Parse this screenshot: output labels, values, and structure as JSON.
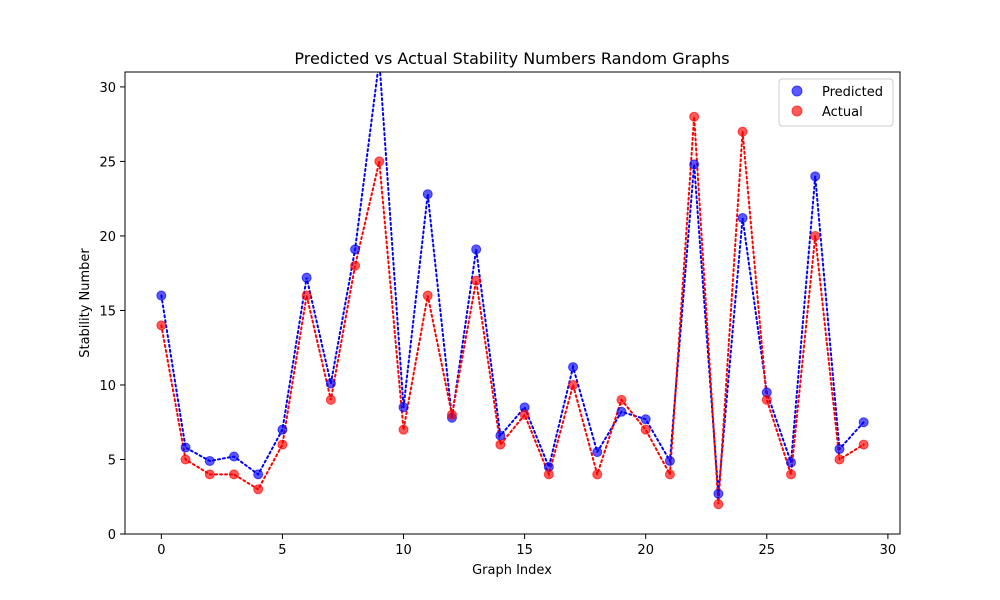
{
  "chart_data": {
    "type": "line",
    "title": "Predicted vs Actual Stability Numbers Random Graphs",
    "xlabel": "Graph Index",
    "ylabel": "Stability Number",
    "xlim": [
      -1.5,
      30.5
    ],
    "ylim": [
      0,
      31
    ],
    "xticks": [
      0,
      5,
      10,
      15,
      20,
      25,
      30
    ],
    "yticks": [
      0,
      5,
      10,
      15,
      20,
      25,
      30
    ],
    "grid": false,
    "legend_position": "top-right",
    "x": [
      0,
      1,
      2,
      3,
      4,
      5,
      6,
      7,
      8,
      9,
      10,
      11,
      12,
      13,
      14,
      15,
      16,
      17,
      18,
      19,
      20,
      21,
      22,
      23,
      24,
      25,
      26,
      27,
      28,
      29
    ],
    "series": [
      {
        "name": "Predicted",
        "color": "#0000ff",
        "values": [
          16.0,
          5.8,
          4.9,
          5.2,
          4.0,
          7.0,
          17.2,
          10.1,
          19.1,
          31.8,
          8.5,
          22.8,
          7.8,
          19.1,
          6.6,
          8.5,
          4.5,
          11.2,
          5.5,
          8.2,
          7.7,
          4.9,
          24.8,
          2.7,
          21.2,
          9.5,
          4.8,
          24.0,
          5.7,
          7.5
        ]
      },
      {
        "name": "Actual",
        "color": "#ff0000",
        "values": [
          14,
          5,
          4,
          4,
          3,
          6,
          16,
          9,
          18,
          25,
          7,
          16,
          8,
          17,
          6,
          8,
          4,
          10,
          4,
          9,
          7,
          4,
          28,
          2,
          27,
          9,
          4,
          20,
          5,
          6
        ]
      }
    ]
  }
}
